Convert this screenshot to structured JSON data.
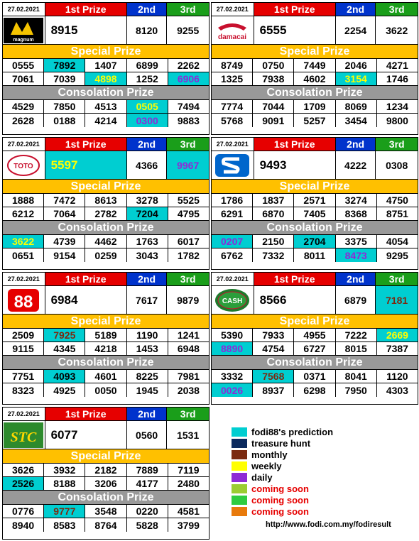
{
  "panels": [
    {
      "date": "27.02.2021",
      "first_label": "1st Prize",
      "second_label": "2nd",
      "third_label": "3rd",
      "logo": "magnum-logo",
      "logo_text": "magnum",
      "first": "8915",
      "second": "8120",
      "third": "9255",
      "special_label": "Special Prize",
      "special": [
        "0555",
        "7892",
        "1407",
        "6899",
        "2262",
        "7061",
        "7039",
        "4898",
        "1252",
        "6906"
      ],
      "consol_label": "Consolation Prize",
      "consol": [
        "4529",
        "7850",
        "4513",
        "0505",
        "7494",
        "2628",
        "0188",
        "4214",
        "0300",
        "9883"
      ]
    },
    {
      "date": "27.02.2021",
      "first_label": "1st Prize",
      "second_label": "2nd",
      "third_label": "3rd",
      "logo": "damacai-logo",
      "logo_text": "damacai",
      "first": "6555",
      "second": "2254",
      "third": "3622",
      "special_label": "Special Prize",
      "special": [
        "8749",
        "0750",
        "7449",
        "2046",
        "4271",
        "1325",
        "7938",
        "4602",
        "3154",
        "1746"
      ],
      "consol_label": "Consolation Prize",
      "consol": [
        "7774",
        "7044",
        "1709",
        "8069",
        "1234",
        "5768",
        "9091",
        "5257",
        "3454",
        "9800"
      ]
    },
    {
      "date": "27.02.2021",
      "first_label": "1st Prize",
      "second_label": "2nd",
      "third_label": "3rd",
      "logo": "toto-logo",
      "logo_text": "TOTO",
      "first": "5597",
      "second": "4366",
      "third": "9967",
      "special_label": "Special Prize",
      "special": [
        "1888",
        "7472",
        "8613",
        "3278",
        "5525",
        "6212",
        "7064",
        "2782",
        "7204",
        "4795"
      ],
      "consol_label": "Consolation Prize",
      "consol": [
        "3622",
        "4739",
        "4462",
        "1763",
        "6017",
        "0651",
        "9154",
        "0259",
        "3043",
        "1782"
      ]
    },
    {
      "date": "27.02.2021",
      "first_label": "1st Prize",
      "second_label": "2nd",
      "third_label": "3rd",
      "logo": "singapore-pools-logo",
      "logo_text": "S",
      "first": "9493",
      "second": "4222",
      "third": "0308",
      "special_label": "Special Prize",
      "special": [
        "1786",
        "1837",
        "2571",
        "3274",
        "4750",
        "6291",
        "6870",
        "7405",
        "8368",
        "8751"
      ],
      "consol_label": "Consolation Prize",
      "consol": [
        "0207",
        "2150",
        "2704",
        "3375",
        "4054",
        "6762",
        "7332",
        "8011",
        "8473",
        "9295"
      ]
    },
    {
      "date": "27.02.2021",
      "first_label": "1st Prize",
      "second_label": "2nd",
      "third_label": "3rd",
      "logo": "sabah88-logo",
      "logo_text": "88",
      "first": "6984",
      "second": "7617",
      "third": "9879",
      "special_label": "Special Prize",
      "special": [
        "2509",
        "7925",
        "5189",
        "1190",
        "1241",
        "9115",
        "4345",
        "4218",
        "1453",
        "6948"
      ],
      "consol_label": "Consolation Prize",
      "consol": [
        "7751",
        "4093",
        "4601",
        "8225",
        "7981",
        "8323",
        "4925",
        "0050",
        "1945",
        "2038"
      ]
    },
    {
      "date": "27.02.2021",
      "first_label": "1st Prize",
      "second_label": "2nd",
      "third_label": "3rd",
      "logo": "cashsweep-logo",
      "logo_text": "CASH",
      "first": "8566",
      "second": "6879",
      "third": "7181",
      "special_label": "Special Prize",
      "special": [
        "5390",
        "7933",
        "4955",
        "7222",
        "2669",
        "8890",
        "4754",
        "6727",
        "8015",
        "7387"
      ],
      "consol_label": "Consolation Prize",
      "consol": [
        "3332",
        "7568",
        "0371",
        "8041",
        "1120",
        "0026",
        "8937",
        "6298",
        "7950",
        "4303"
      ]
    },
    {
      "date": "27.02.2021",
      "first_label": "1st Prize",
      "second_label": "2nd",
      "third_label": "3rd",
      "logo": "stc-logo",
      "logo_text": "STC",
      "first": "6077",
      "second": "0560",
      "third": "1531",
      "special_label": "Special Prize",
      "special": [
        "3626",
        "3932",
        "2182",
        "7889",
        "7119",
        "2526",
        "8188",
        "3206",
        "4177",
        "2480"
      ],
      "consol_label": "Consolation Prize",
      "consol": [
        "0776",
        "9777",
        "3548",
        "0220",
        "4581",
        "8940",
        "8583",
        "8764",
        "5828",
        "3799"
      ]
    }
  ],
  "legend": [
    {
      "label": "fodi88's prediction",
      "color": "#00ced1"
    },
    {
      "label": "treasure hunt",
      "color": "#0b2a5e"
    },
    {
      "label": "monthly",
      "color": "#7b2a10"
    },
    {
      "label": "weekly",
      "color": "#ffff00"
    },
    {
      "label": "daily",
      "color": "#8e2bd6"
    },
    {
      "label": "coming soon",
      "color": "#9acd32"
    },
    {
      "label": "coming soon",
      "color": "#2ecc40"
    },
    {
      "label": "coming soon",
      "color": "#e87a0c"
    }
  ],
  "url": "http://www.fodi.com.my/fodiresult"
}
